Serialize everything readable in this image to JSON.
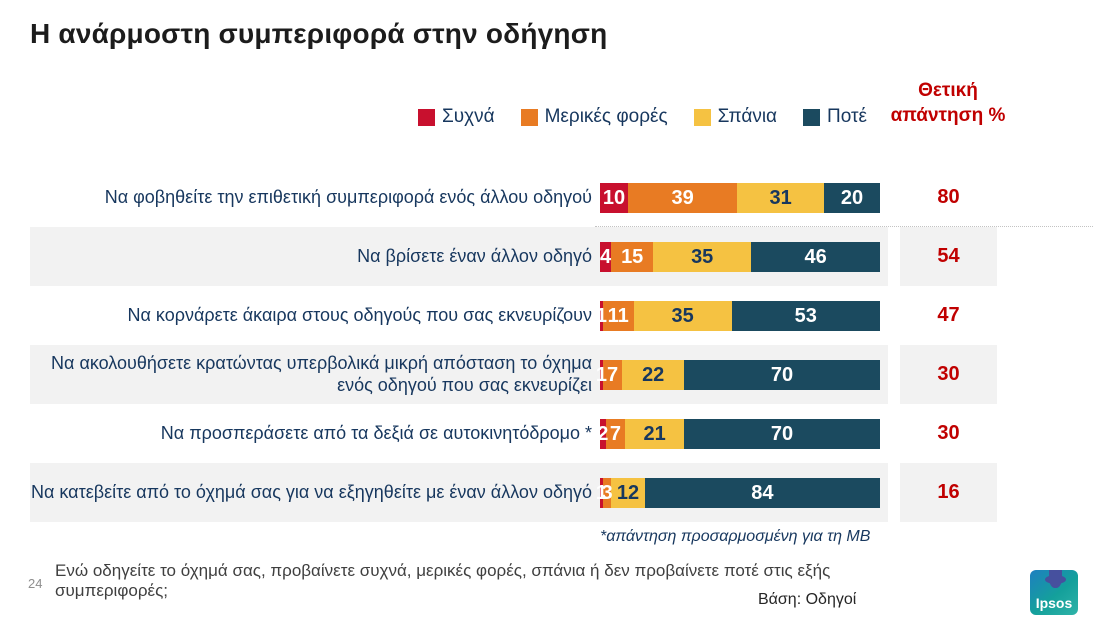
{
  "slide": {
    "title": "Η ανάρμοστη συμπεριφορά στην οδήγηση",
    "positive_header": "Θετική απάντηση %",
    "footnote": "*απάντηση προσαρμοσμένη για τη ΜΒ",
    "question": "Ενώ οδηγείτε το όχημά σας, προβαίνετε συχνά, μερικές φορές, σπάνια ή δεν προβαίνετε ποτέ στις εξής συμπεριφορές;",
    "base_label": "Βάση: Οδηγοί",
    "page_number": "24",
    "logo_text": "Ipsos"
  },
  "colors": {
    "accent_red": "#C00000",
    "navy_text": "#17375E",
    "row_stripe": "#F2F2F2"
  },
  "chart_data": {
    "type": "bar",
    "variant": "horizontal-stacked-100-percent",
    "legend_position": "top",
    "grid": false,
    "xlim": [
      0,
      100
    ],
    "categories": [
      "Να φοβηθείτε την επιθετική συμπεριφορά ενός άλλου οδηγού",
      "Να βρίσετε έναν άλλον οδηγό",
      "Να κορνάρετε άκαιρα στους οδηγούς που σας εκνευρίζουν",
      "Να ακολουθήσετε κρατώντας υπερβολικά μικρή απόσταση το όχημα ενός οδηγού που σας εκνευρίζει",
      "Να προσπεράσετε από τα δεξιά σε αυτοκινητόδρομο *",
      "Να κατεβείτε από το όχημά σας για να εξηγηθείτε με έναν άλλον οδηγό"
    ],
    "series": [
      {
        "name": "Συχνά",
        "color": "#C8102E",
        "label_text_color": "#FFFFFF",
        "values": [
          10,
          4,
          1,
          1,
          2,
          1
        ]
      },
      {
        "name": "Μερικές φορές",
        "color": "#E87B23",
        "label_text_color": "#FFFFFF",
        "values": [
          39,
          15,
          11,
          7,
          7,
          3
        ]
      },
      {
        "name": "Σπάνια",
        "color": "#F5C242",
        "label_text_color": "#17375E",
        "values": [
          31,
          35,
          35,
          22,
          21,
          12
        ]
      },
      {
        "name": "Ποτέ",
        "color": "#1B4A5F",
        "label_text_color": "#FFFFFF",
        "values": [
          20,
          46,
          53,
          70,
          70,
          84
        ]
      }
    ],
    "positive_values": [
      80,
      54,
      47,
      30,
      30,
      16
    ],
    "positive_column_title": "Θετική απάντηση %"
  }
}
